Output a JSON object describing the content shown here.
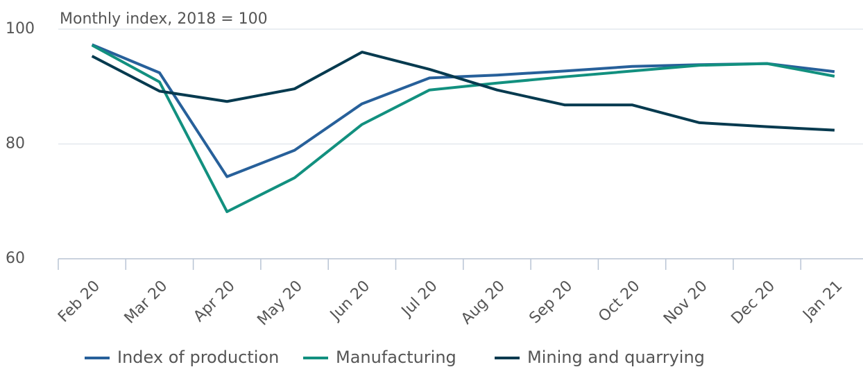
{
  "chart_data": {
    "type": "line",
    "title": "Monthly index, 2018 = 100",
    "categories": [
      "Feb 20",
      "Mar 20",
      "Apr 20",
      "May 20",
      "Jun 20",
      "Jul 20",
      "Aug 20",
      "Sep 20",
      "Oct 20",
      "Nov 20",
      "Dec 20",
      "Jan 21"
    ],
    "series": [
      {
        "name": "Index of production",
        "color": "#27609a",
        "values": [
          97.3,
          92.4,
          74.3,
          78.9,
          87.0,
          91.5,
          92.0,
          92.7,
          93.5,
          93.8,
          94.0,
          92.6
        ]
      },
      {
        "name": "Manufacturing",
        "color": "#12907f",
        "values": [
          97.2,
          90.8,
          68.2,
          74.1,
          83.4,
          89.4,
          90.6,
          91.7,
          92.7,
          93.7,
          94.0,
          91.8
        ]
      },
      {
        "name": "Mining and quarrying",
        "color": "#063a4f",
        "values": [
          95.3,
          89.2,
          87.4,
          89.6,
          96.0,
          93.0,
          89.4,
          86.8,
          86.8,
          83.7,
          83.0,
          82.4
        ]
      }
    ],
    "ylim": [
      60,
      100
    ],
    "yticks": [
      60,
      80,
      100
    ],
    "grid": true
  }
}
